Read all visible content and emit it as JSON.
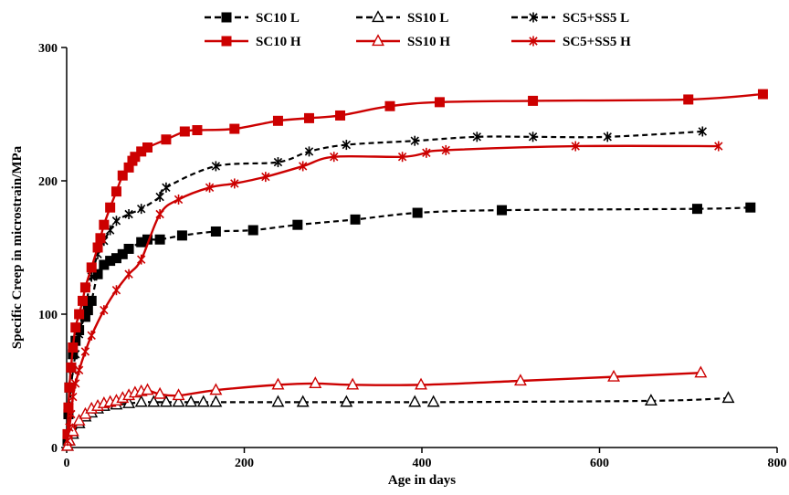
{
  "chart_data": {
    "type": "line",
    "title": "",
    "xlabel": "Age in days",
    "ylabel": "Specific Creep in microstrain/MPa",
    "xlim": [
      0,
      800
    ],
    "ylim": [
      0,
      300
    ],
    "xticks": [
      0,
      200,
      400,
      600,
      800
    ],
    "yticks": [
      0,
      100,
      200,
      300
    ],
    "xtick_labels": [
      "0",
      "200",
      "400",
      "600",
      "800"
    ],
    "ytick_labels": [
      "0",
      "100",
      "200",
      "300"
    ],
    "grid": false,
    "legend_position": "top",
    "series": [
      {
        "name": "SC10 L",
        "color": "#000000",
        "dash": "dashed",
        "marker": "square",
        "x": [
          1,
          2,
          3,
          5,
          7,
          10,
          14,
          21,
          24,
          28,
          35,
          42,
          49,
          56,
          63,
          70,
          84,
          91,
          105,
          130,
          168,
          210,
          260,
          325,
          395,
          490,
          710,
          770
        ],
        "y": [
          5,
          25,
          45,
          60,
          70,
          80,
          88,
          98,
          103,
          110,
          130,
          137,
          140,
          142,
          145,
          149,
          154,
          156,
          156,
          159,
          162,
          163,
          167,
          171,
          176,
          178,
          179,
          180
        ]
      },
      {
        "name": "SS10 L",
        "color": "#000000",
        "dash": "dashed",
        "marker": "triangle",
        "x": [
          1,
          3,
          7,
          14,
          21,
          28,
          35,
          42,
          56,
          70,
          84,
          98,
          112,
          126,
          140,
          154,
          168,
          238,
          266,
          315,
          392,
          413,
          658,
          745
        ],
        "y": [
          1,
          5,
          10,
          18,
          23,
          26,
          29,
          31,
          32,
          33,
          34,
          34,
          34,
          34,
          34,
          34,
          34,
          34,
          34,
          34,
          34,
          34,
          35,
          37
        ]
      },
      {
        "name": "SC5+SS5 L",
        "color": "#000000",
        "dash": "dashed",
        "marker": "asterisk",
        "x": [
          1,
          3,
          5,
          7,
          10,
          14,
          21,
          28,
          35,
          42,
          49,
          56,
          70,
          84,
          105,
          112,
          168,
          238,
          273,
          315,
          392,
          462,
          525,
          609,
          716
        ],
        "y": [
          10,
          30,
          45,
          58,
          70,
          85,
          105,
          128,
          145,
          155,
          163,
          170,
          175,
          179,
          188,
          195,
          211,
          214,
          222,
          227,
          230,
          233,
          233,
          233,
          237
        ]
      },
      {
        "name": "SC10 H",
        "color": "#cc0000",
        "dash": "solid",
        "marker": "square",
        "x": [
          1,
          2,
          3,
          5,
          7,
          10,
          14,
          18,
          21,
          28,
          35,
          38,
          42,
          49,
          56,
          63,
          70,
          74,
          77,
          84,
          91,
          112,
          133,
          147,
          189,
          238,
          273,
          308,
          364,
          420,
          525,
          700,
          784
        ],
        "y": [
          10,
          30,
          45,
          60,
          75,
          90,
          100,
          110,
          120,
          135,
          150,
          157,
          167,
          180,
          192,
          204,
          210,
          215,
          218,
          222,
          225,
          231,
          237,
          238,
          239,
          245,
          247,
          249,
          256,
          259,
          260,
          261,
          265
        ]
      },
      {
        "name": "SS10 H",
        "color": "#cc0000",
        "dash": "solid",
        "marker": "triangle",
        "x": [
          1,
          3,
          7,
          14,
          21,
          28,
          35,
          42,
          49,
          56,
          63,
          70,
          77,
          84,
          91,
          105,
          126,
          168,
          238,
          280,
          322,
          399,
          511,
          616,
          714
        ],
        "y": [
          1,
          5,
          12,
          20,
          25,
          29,
          31,
          33,
          34,
          35,
          37,
          39,
          41,
          42,
          43,
          40,
          39,
          43,
          47,
          48,
          47,
          47,
          50,
          53,
          56
        ]
      },
      {
        "name": "SC5+SS5 H",
        "color": "#cc0000",
        "dash": "solid",
        "marker": "asterisk",
        "x": [
          1,
          3,
          5,
          7,
          10,
          14,
          21,
          28,
          42,
          56,
          70,
          84,
          105,
          126,
          161,
          189,
          224,
          266,
          301,
          378,
          405,
          427,
          573,
          734
        ],
        "y": [
          5,
          15,
          25,
          38,
          48,
          58,
          72,
          84,
          103,
          118,
          130,
          141,
          175,
          186,
          195,
          198,
          203,
          211,
          218,
          218,
          221,
          223,
          226,
          226
        ]
      }
    ]
  }
}
